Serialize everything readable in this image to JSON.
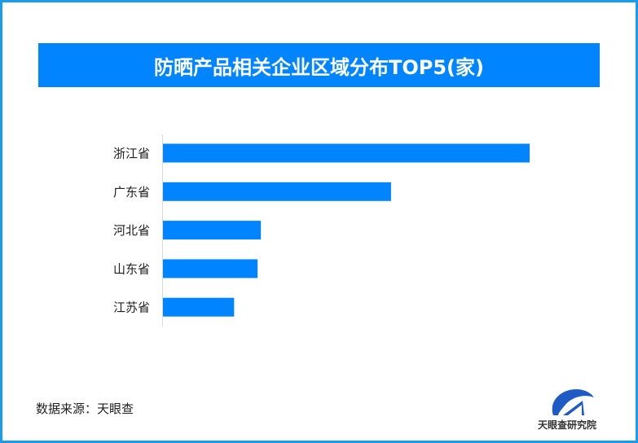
{
  "title": "防晒产品相关企业区域分布TOP5(家)",
  "source": "数据来源：天眼查",
  "logo_text": "天眼查研究院",
  "colors": {
    "bar": "#0084ff",
    "title_bg": "#0084ff",
    "frame": "#1a9bf0"
  },
  "chart_data": {
    "type": "bar",
    "orientation": "horizontal",
    "title": "防晒产品相关企业区域分布TOP5(家)",
    "categories": [
      "浙江省",
      "广东省",
      "河北省",
      "山东省",
      "江苏省"
    ],
    "values": [
      1.0,
      0.622,
      0.267,
      0.258,
      0.194
    ],
    "value_note": "relative to largest bar; no axis values printed",
    "grid": false,
    "legend": "none"
  }
}
